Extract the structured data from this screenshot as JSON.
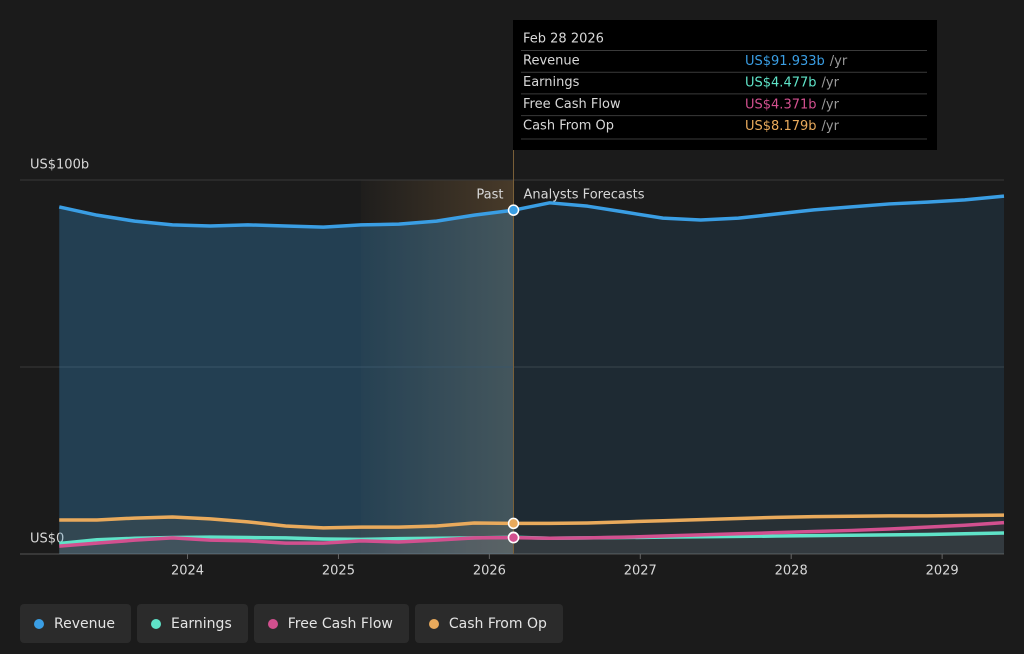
{
  "chart_data": {
    "type": "area",
    "x": [
      2023.15,
      2023.4,
      2023.65,
      2023.9,
      2024.15,
      2024.4,
      2024.65,
      2024.9,
      2025.15,
      2025.4,
      2025.65,
      2025.9,
      2026.16,
      2026.4,
      2026.65,
      2026.9,
      2027.15,
      2027.4,
      2027.65,
      2027.9,
      2028.15,
      2028.4,
      2028.65,
      2028.9,
      2029.15,
      2029.41
    ],
    "series": [
      {
        "name": "Revenue",
        "color": "#3a9ee4",
        "values": [
          92.8,
          90.6,
          89.0,
          88.0,
          87.7,
          88.0,
          87.7,
          87.4,
          88.0,
          88.2,
          89.0,
          90.6,
          91.933,
          93.9,
          93.0,
          91.4,
          89.8,
          89.3,
          89.8,
          90.9,
          92.0,
          92.8,
          93.6,
          94.1,
          94.7,
          95.7
        ]
      },
      {
        "name": "Earnings",
        "color": "#5fe3c8",
        "values": [
          2.8,
          3.8,
          4.2,
          4.4,
          4.5,
          4.4,
          4.3,
          4.0,
          3.9,
          4.1,
          4.2,
          4.3,
          4.477,
          4.2,
          4.3,
          4.4,
          4.5,
          4.6,
          4.7,
          4.8,
          4.9,
          5.0,
          5.1,
          5.2,
          5.4,
          5.6
        ]
      },
      {
        "name": "Free Cash Flow",
        "color": "#d2508f",
        "values": [
          2.1,
          2.9,
          3.7,
          4.3,
          3.7,
          3.5,
          2.9,
          2.9,
          3.5,
          3.2,
          3.7,
          4.3,
          4.371,
          4.2,
          4.3,
          4.5,
          4.8,
          5.1,
          5.4,
          5.7,
          6.0,
          6.3,
          6.7,
          7.2,
          7.7,
          8.4
        ]
      },
      {
        "name": "Cash From Op",
        "color": "#e9aa5c",
        "values": [
          9.1,
          9.1,
          9.6,
          9.9,
          9.4,
          8.6,
          7.5,
          7.0,
          7.2,
          7.2,
          7.5,
          8.3,
          8.179,
          8.2,
          8.3,
          8.6,
          8.9,
          9.2,
          9.5,
          9.8,
          10.0,
          10.1,
          10.2,
          10.2,
          10.3,
          10.4
        ]
      }
    ],
    "xlim": [
      2022.89,
      2029.41
    ],
    "xticks": [
      2024,
      2025,
      2026,
      2027,
      2028,
      2029
    ],
    "ylim": [
      0,
      100
    ],
    "yticks": [
      {
        "value": 0,
        "label": "US$0"
      },
      {
        "value": 50,
        "label": null
      },
      {
        "value": 100,
        "label": "US$100b"
      }
    ],
    "grid": true,
    "forecast_start": 2026.16,
    "shaded_range": [
      2025.15,
      2026.16
    ],
    "past_label": "Past",
    "forecast_label": "Analysts Forecasts",
    "tooltip": {
      "date": "Feb 28 2026",
      "rows": [
        {
          "label": "Revenue",
          "value": "US$91.933b",
          "unit": "/yr"
        },
        {
          "label": "Earnings",
          "value": "US$4.477b",
          "unit": "/yr"
        },
        {
          "label": "Free Cash Flow",
          "value": "US$4.371b",
          "unit": "/yr"
        },
        {
          "label": "Cash From Op",
          "value": "US$8.179b",
          "unit": "/yr"
        }
      ]
    }
  }
}
